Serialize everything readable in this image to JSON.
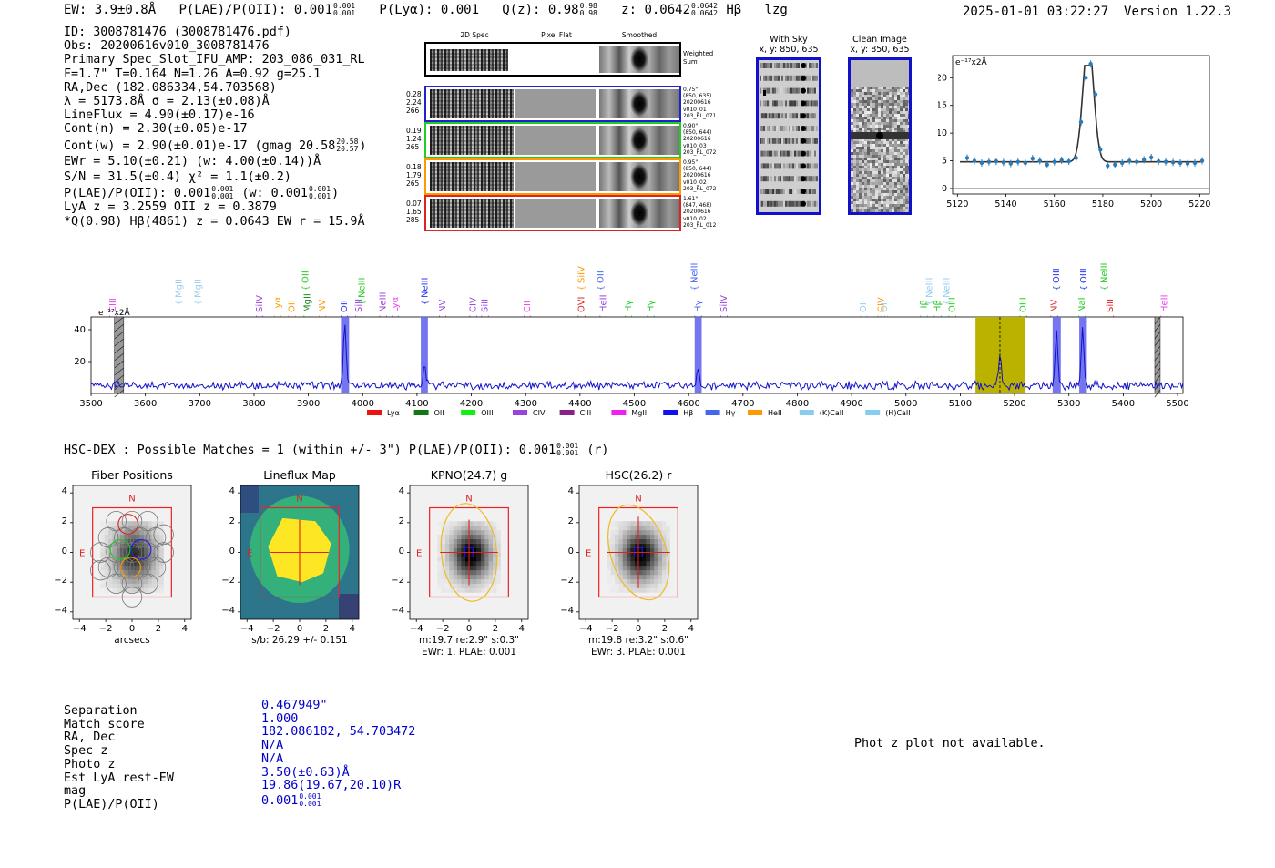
{
  "header": {
    "ew": "EW: 3.9±0.8Å",
    "plae_label": "P(LAE)/P(OII): 0.001",
    "plae_sup": "0.001",
    "plae_sub": "0.001",
    "plya": "P(Lyα): 0.001",
    "qz_label": "Q(z): 0.98",
    "qz_sup": "0.98",
    "qz_sub": "0.98",
    "z_label": "z: 0.0642",
    "z_sup": "0.0642",
    "z_sub": "0.0642",
    "line_tag": "Hβ",
    "flag": "lzg",
    "datetime": "2025-01-01 03:22:27",
    "version": "Version 1.22.3"
  },
  "info": {
    "id": "ID: 3008781476 (3008781476.pdf)",
    "obs": "Obs: 20200616v010_3008781476",
    "primary": "Primary Spec_Slot_IFU_AMP: 203_086_031_RL",
    "seeing": "F=1.7\"  T=0.164  N=1.26  A=0.92  g=25.1",
    "radec": "RA,Dec (182.086334,54.703568)",
    "lambda": "λ = 5173.8Å   σ = 2.13(±0.08)Å",
    "lineflux": "LineFlux = 4.90(±0.17)e-16",
    "cont_n": "Cont(n) = 2.30(±0.05)e-17",
    "cont_w": "Cont(w) = 2.90(±0.01)e-17 (gmag 20.58",
    "gmag_sup": "20.58",
    "gmag_sub": "20.57",
    "cont_w_end": ")",
    "ewr": "EWr = 5.10(±0.21) (w: 4.00(±0.14))Å",
    "sn": "S/N = 31.5(±0.4)  χ² = 1.1(±0.2)",
    "plae": "P(LAE)/P(OII): 0.001",
    "plae_sup": "0.001",
    "plae_sub": "0.001",
    "plae_w": "(w: 0.001",
    "plae_w_sup": "0.001",
    "plae_w_sub": "0.001",
    "plae_w_end": ")",
    "lya": "LyA z = 3.2559  OII z = 0.3879",
    "q": "*Q(0.98) Hβ(4861) z = 0.0643  EW r = 15.9Å"
  },
  "cutouts": {
    "col_titles": [
      "2D Spec",
      "Pixel Flat",
      "Smoothed"
    ],
    "weighted": "Weighted\nSum",
    "rows": [
      {
        "left": [
          "0.28",
          "2.24",
          "266"
        ],
        "right": [
          "0.75\"",
          "(850, 635)",
          "20200616",
          "v010_01",
          "203_RL_071"
        ],
        "color": "#2222cc"
      },
      {
        "left": [
          "0.19",
          "1.24",
          "265"
        ],
        "right": [
          "0.90\"",
          "(850, 644)",
          "20200616",
          "v010_03",
          "203_RL_072"
        ],
        "color": "#22cc22"
      },
      {
        "left": [
          "0.18",
          "1.79",
          "265"
        ],
        "right": [
          "0.95\"",
          "(850, 644)",
          "20200616",
          "v010_02",
          "203_RL_072"
        ],
        "color": "#ff9900"
      },
      {
        "left": [
          "0.07",
          "1.65",
          "285"
        ],
        "right": [
          "1.61\"",
          "(847, 468)",
          "20200616",
          "v010_02",
          "203_RL_012"
        ],
        "color": "#dd2222"
      }
    ]
  },
  "fiber_images": {
    "with_sky": "With Sky",
    "clean": "Clean Image",
    "coords": "x, y: 850, 635"
  },
  "line_fit": {
    "ylabel": "e⁻¹⁷x2Å",
    "xticks": [
      "5120",
      "5140",
      "5160",
      "5180",
      "5200",
      "5220"
    ],
    "yticks": [
      "20",
      "15",
      "10",
      "5",
      "0"
    ]
  },
  "chart_data": [
    {
      "type": "line",
      "title": "",
      "ylabel": "e⁻¹⁷x2Å",
      "xlim": [
        5118,
        5224
      ],
      "ylim": [
        -1,
        24
      ],
      "points_x": [
        5124,
        5127,
        5130,
        5133,
        5136,
        5139,
        5142,
        5145,
        5148,
        5151,
        5154,
        5157,
        5160,
        5163,
        5166,
        5169,
        5171,
        5173,
        5175,
        5177,
        5179,
        5182,
        5185,
        5188,
        5191,
        5194,
        5197,
        5200,
        5203,
        5206,
        5209,
        5212,
        5215,
        5218,
        5221
      ],
      "points_y": [
        5.5,
        5.0,
        4.6,
        4.8,
        4.9,
        4.7,
        4.5,
        4.8,
        4.6,
        5.4,
        5.0,
        4.3,
        4.8,
        5.1,
        4.9,
        5.5,
        12,
        20,
        22.5,
        17,
        7,
        4.1,
        4.3,
        4.6,
        5.0,
        4.8,
        5.2,
        5.6,
        4.9,
        4.8,
        4.7,
        4.6,
        4.5,
        4.6,
        5.0
      ],
      "fit_peak": 22,
      "fit_center": 5174,
      "fit_sigma": 2.2,
      "fit_base": 4.8
    },
    {
      "type": "line",
      "ylabel": "e⁻¹⁷x2Å",
      "xlim": [
        3500,
        5510
      ],
      "ylim": [
        0,
        48
      ],
      "xticks": [
        "3500",
        "3600",
        "3700",
        "3800",
        "3900",
        "4000",
        "4100",
        "4200",
        "4300",
        "4400",
        "4500",
        "4600",
        "4700",
        "4800",
        "4900",
        "5000",
        "5100",
        "5200",
        "5300",
        "5400",
        "5500"
      ],
      "yticks": [
        "40",
        "20"
      ],
      "emission_peaks": [
        {
          "x": 3967,
          "y": 38
        },
        {
          "x": 4114,
          "y": 13
        },
        {
          "x": 4617,
          "y": 12
        },
        {
          "x": 5173,
          "y": 22
        },
        {
          "x": 5277,
          "y": 33
        },
        {
          "x": 5325,
          "y": 36
        }
      ],
      "blue_bands": [
        [
          3960,
          3975
        ],
        [
          4107,
          4120
        ],
        [
          4611,
          4624
        ],
        [
          5270,
          5285
        ],
        [
          5319,
          5333
        ]
      ],
      "hatched_bands": [
        [
          3543,
          3560
        ],
        [
          5458,
          5468
        ]
      ],
      "olive_band": [
        5128,
        5219
      ],
      "dashed_line": 5173,
      "line_labels": [
        {
          "name": "CIII",
          "x": 3540,
          "row": 2,
          "color": "#ee44ee"
        },
        {
          "name": "MgII",
          "x": 3662,
          "row": 1,
          "color": "#99ccee"
        },
        {
          "name": "MgII",
          "x": 3697,
          "row": 1,
          "color": "#99ccee"
        },
        {
          "name": "SiIV",
          "x": 3810,
          "row": 2,
          "color": "#9944dd"
        },
        {
          "name": "Lyα",
          "x": 3844,
          "row": 2,
          "color": "#ff9900"
        },
        {
          "name": "OII",
          "x": 3870,
          "row": 2,
          "color": "#ff9900"
        },
        {
          "name": "MgII",
          "x": 3898,
          "row": 2,
          "color": "#228822"
        },
        {
          "name": "OII",
          "x": 3895,
          "row": 0,
          "color": "#22cc22"
        },
        {
          "name": "NV",
          "x": 3926,
          "row": 2,
          "color": "#ff9900"
        },
        {
          "name": "OII",
          "x": 3966,
          "row": 2,
          "color": "#2233ee"
        },
        {
          "name": "SiII",
          "x": 3993,
          "row": 2,
          "color": "#9944dd"
        },
        {
          "name": "NeIII",
          "x": 3999,
          "row": 1,
          "color": "#22cc22"
        },
        {
          "name": "NeIII",
          "x": 4037,
          "row": 2,
          "color": "#9944dd"
        },
        {
          "name": "Lyα",
          "x": 4060,
          "row": 2,
          "color": "#ee44ee"
        },
        {
          "name": "NeIII",
          "x": 4114,
          "row": 1,
          "color": "#2233ee"
        },
        {
          "name": "NV",
          "x": 4147,
          "row": 2,
          "color": "#9944dd"
        },
        {
          "name": "CIV",
          "x": 4203,
          "row": 2,
          "color": "#9944dd"
        },
        {
          "name": "SiII",
          "x": 4225,
          "row": 2,
          "color": "#9944dd"
        },
        {
          "name": "CII",
          "x": 4303,
          "row": 2,
          "color": "#ee44ee"
        },
        {
          "name": "SiIV",
          "x": 4403,
          "row": 0,
          "color": "#ff9900"
        },
        {
          "name": "OII",
          "x": 4438,
          "row": 0,
          "color": "#4466ee"
        },
        {
          "name": "OVI",
          "x": 4403,
          "row": 2,
          "color": "#dd2222"
        },
        {
          "name": "HeII",
          "x": 4443,
          "row": 2,
          "color": "#9944dd"
        },
        {
          "name": "Hγ",
          "x": 4489,
          "row": 2,
          "color": "#22cc22"
        },
        {
          "name": "Hγ",
          "x": 4530,
          "row": 2,
          "color": "#22cc22"
        },
        {
          "name": "NeIII",
          "x": 4611,
          "row": 0,
          "color": "#4466ee"
        },
        {
          "name": "Hγ",
          "x": 4617,
          "row": 2,
          "color": "#4466ee"
        },
        {
          "name": "SiIV",
          "x": 4665,
          "row": 2,
          "color": "#9944dd"
        },
        {
          "name": "OII",
          "x": 4922,
          "row": 2,
          "color": "#99ccee"
        },
        {
          "name": "CIV",
          "x": 4954,
          "row": 2,
          "color": "#ff9900"
        },
        {
          "name": "OII",
          "x": 4960,
          "row": 2,
          "color": "#99ccee"
        },
        {
          "name": "Hβ",
          "x": 5033,
          "row": 2,
          "color": "#22cc22"
        },
        {
          "name": "NeIII",
          "x": 5043,
          "row": 1,
          "color": "#99ccee"
        },
        {
          "name": "Hβ",
          "x": 5058,
          "row": 2,
          "color": "#22cc22"
        },
        {
          "name": "NeIII",
          "x": 5075,
          "row": 1,
          "color": "#99ccee"
        },
        {
          "name": "OIII",
          "x": 5085,
          "row": 2,
          "color": "#22cc22"
        },
        {
          "name": "OIII",
          "x": 5216,
          "row": 2,
          "color": "#22cc22"
        },
        {
          "name": "NV",
          "x": 5273,
          "row": 2,
          "color": "#dd2222"
        },
        {
          "name": "OIII",
          "x": 5277,
          "row": 0,
          "color": "#2233ee"
        },
        {
          "name": "NaI",
          "x": 5324,
          "row": 2,
          "color": "#22cc22"
        },
        {
          "name": "OIII",
          "x": 5327,
          "row": 0,
          "color": "#2233ee"
        },
        {
          "name": "NeIII",
          "x": 5365,
          "row": 0,
          "color": "#22cc22"
        },
        {
          "name": "SiII",
          "x": 5376,
          "row": 2,
          "color": "#dd2222"
        },
        {
          "name": "HeII",
          "x": 5476,
          "row": 2,
          "color": "#ee44ee"
        }
      ],
      "legend": [
        {
          "label": "Lyα",
          "color": "#ee1111"
        },
        {
          "label": "OII",
          "color": "#117711"
        },
        {
          "label": "OIII",
          "color": "#11ee11"
        },
        {
          "label": "CIV",
          "color": "#9944dd"
        },
        {
          "label": "CIII",
          "color": "#882288"
        },
        {
          "label": "MgII",
          "color": "#ee22ee"
        },
        {
          "label": "Hβ",
          "color": "#1111ee"
        },
        {
          "label": "Hγ",
          "color": "#4466ee"
        },
        {
          "label": "HeII",
          "color": "#ff9900"
        },
        {
          "label": "(K)CaII",
          "color": "#88ccee"
        },
        {
          "label": "(H)CaII",
          "color": "#88ccee"
        }
      ]
    }
  ],
  "hsc": {
    "line": "HSC-DEX : Possible Matches = 1 (within +/- 3\")  P(LAE)/P(OII): 0.001",
    "sup": "0.001",
    "sub": "0.001",
    "suffix": "(r)"
  },
  "panels": [
    {
      "title": "Fiber Positions",
      "caption1": "arcsecs",
      "caption2": ""
    },
    {
      "title": "Lineflux Map",
      "caption1": "s/b: 26.29 +/- 0.151",
      "caption2": ""
    },
    {
      "title": "KPNO(24.7) g",
      "caption1": "m:19.7  re:2.9\"  s:0.3\"",
      "caption2": "EWr: 1. PLAE: 0.001"
    },
    {
      "title": "HSC(26.2) r",
      "caption1": "m:19.8  re:3.2\"  s:0.6\"",
      "caption2": "EWr: 3. PLAE: 0.001"
    }
  ],
  "panel_ticks": {
    "x": [
      "−4",
      "−2",
      "0",
      "2",
      "4"
    ],
    "y": [
      "4",
      "2",
      "0",
      "−2",
      "−4"
    ],
    "north": "N",
    "east": "E"
  },
  "match": {
    "labels": [
      "Separation",
      "Match score",
      "RA, Dec",
      "Spec z",
      "Photo z",
      "Est LyA rest-EW",
      "mag",
      "P(LAE)/P(OII)"
    ],
    "values": [
      "0.467949\"",
      "1.000",
      "182.086182, 54.703472",
      "N/A",
      "N/A",
      "3.50(±0.63)Å",
      "19.86(19.67,20.10)R",
      "0.001"
    ],
    "plae_sup": "0.001",
    "plae_sub": "0.001"
  },
  "photz_note": "Phot z plot not available."
}
